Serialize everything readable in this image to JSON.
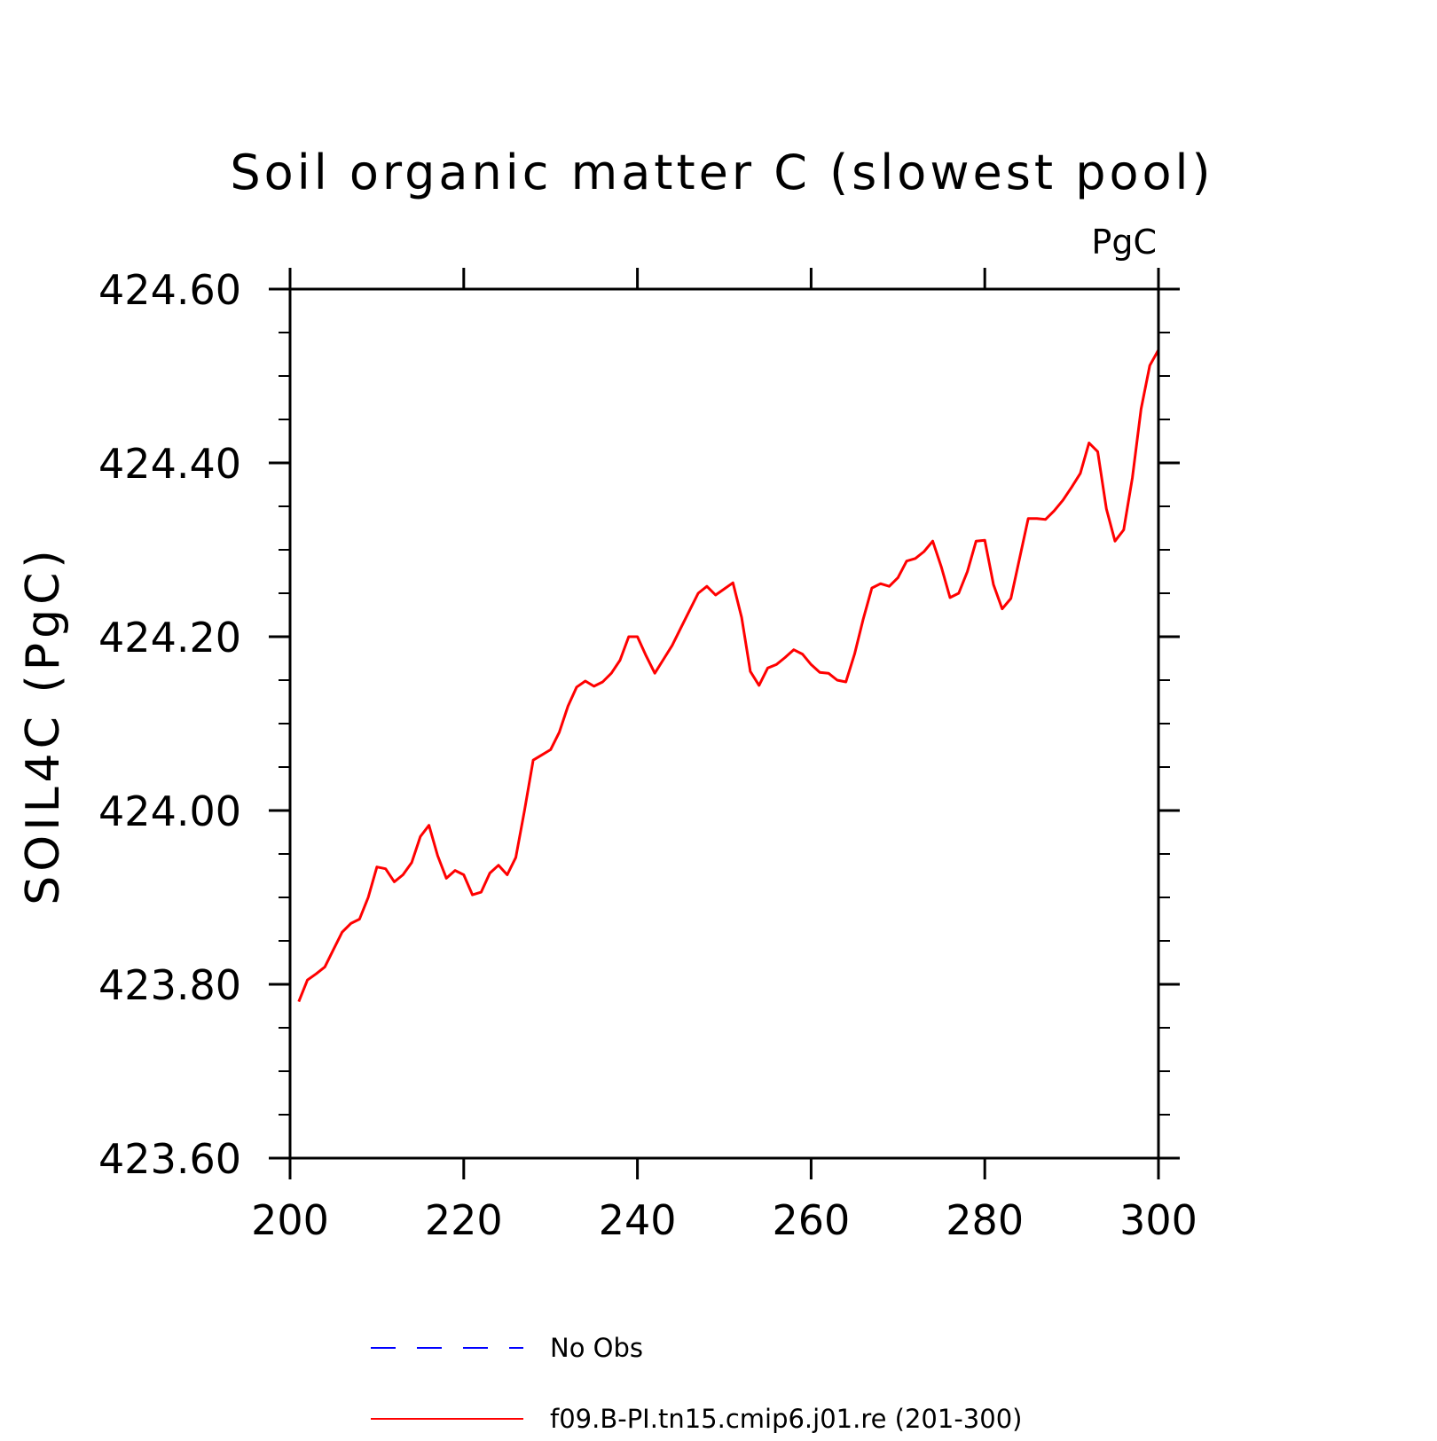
{
  "chart_data": {
    "type": "line",
    "title": "Soil organic matter C (slowest pool)",
    "units_label": "PgC",
    "ylabel": "SOIL4C  (PgC)",
    "xlabel": "",
    "xlim": [
      201,
      300
    ],
    "ylim": [
      423.6,
      424.6
    ],
    "xticks": [
      200,
      220,
      240,
      260,
      280,
      300
    ],
    "xtick_labels": [
      "200",
      "220",
      "240",
      "260",
      "280",
      "300"
    ],
    "yticks": [
      423.6,
      423.8,
      424.0,
      424.2,
      424.4,
      424.6
    ],
    "ytick_labels": [
      "423.60",
      "423.80",
      "424.00",
      "424.20",
      "424.40",
      "424.60"
    ],
    "grid": false,
    "legend_position": "bottom",
    "legend": [
      {
        "label": "No Obs",
        "color": "#0000ff",
        "style": "dashed"
      },
      {
        "label": "f09.B-PI.tn15.cmip6.j01.re (201-300)",
        "color": "#ff0000",
        "style": "solid"
      }
    ],
    "series": [
      {
        "name": "f09.B-PI.tn15.cmip6.j01.re (201-300)",
        "color": "#ff0000",
        "x": [
          201,
          202,
          203,
          204,
          205,
          206,
          207,
          208,
          209,
          210,
          211,
          212,
          213,
          214,
          215,
          216,
          217,
          218,
          219,
          220,
          221,
          222,
          223,
          224,
          225,
          226,
          227,
          228,
          229,
          230,
          231,
          232,
          233,
          234,
          235,
          236,
          237,
          238,
          239,
          240,
          241,
          242,
          243,
          244,
          245,
          246,
          247,
          248,
          249,
          250,
          251,
          252,
          253,
          254,
          255,
          256,
          257,
          258,
          259,
          260,
          261,
          262,
          263,
          264,
          265,
          266,
          267,
          268,
          269,
          270,
          271,
          272,
          273,
          274,
          275,
          276,
          277,
          278,
          279,
          280,
          281,
          282,
          283,
          284,
          285,
          286,
          287,
          288,
          289,
          290,
          291,
          292,
          293,
          294,
          295,
          296,
          297,
          298,
          299,
          300
        ],
        "y": [
          423.78,
          423.805,
          423.812,
          423.82,
          423.84,
          423.86,
          423.87,
          423.875,
          423.9,
          423.935,
          423.933,
          423.918,
          423.926,
          423.94,
          423.97,
          423.983,
          423.948,
          423.922,
          423.931,
          423.926,
          423.903,
          423.906,
          423.928,
          423.937,
          423.926,
          423.946,
          424.0,
          424.058,
          424.064,
          424.07,
          424.09,
          424.12,
          424.142,
          424.149,
          424.143,
          424.148,
          424.158,
          424.173,
          424.2,
          424.2,
          424.178,
          424.158,
          424.174,
          424.19,
          424.21,
          424.23,
          424.25,
          424.258,
          424.248,
          424.255,
          424.262,
          424.222,
          424.16,
          424.144,
          424.164,
          424.168,
          424.176,
          424.185,
          424.18,
          424.168,
          424.159,
          424.158,
          424.15,
          424.148,
          424.18,
          424.22,
          424.256,
          424.261,
          424.258,
          424.268,
          424.287,
          424.29,
          424.298,
          424.31,
          424.28,
          424.245,
          424.25,
          424.275,
          424.31,
          424.311,
          424.26,
          424.232,
          424.244,
          424.29,
          424.336,
          424.336,
          424.335,
          424.345,
          424.357,
          424.372,
          424.388,
          424.423,
          424.413,
          424.347,
          424.31,
          424.323,
          424.383,
          424.462,
          424.512,
          424.53
        ]
      }
    ]
  }
}
